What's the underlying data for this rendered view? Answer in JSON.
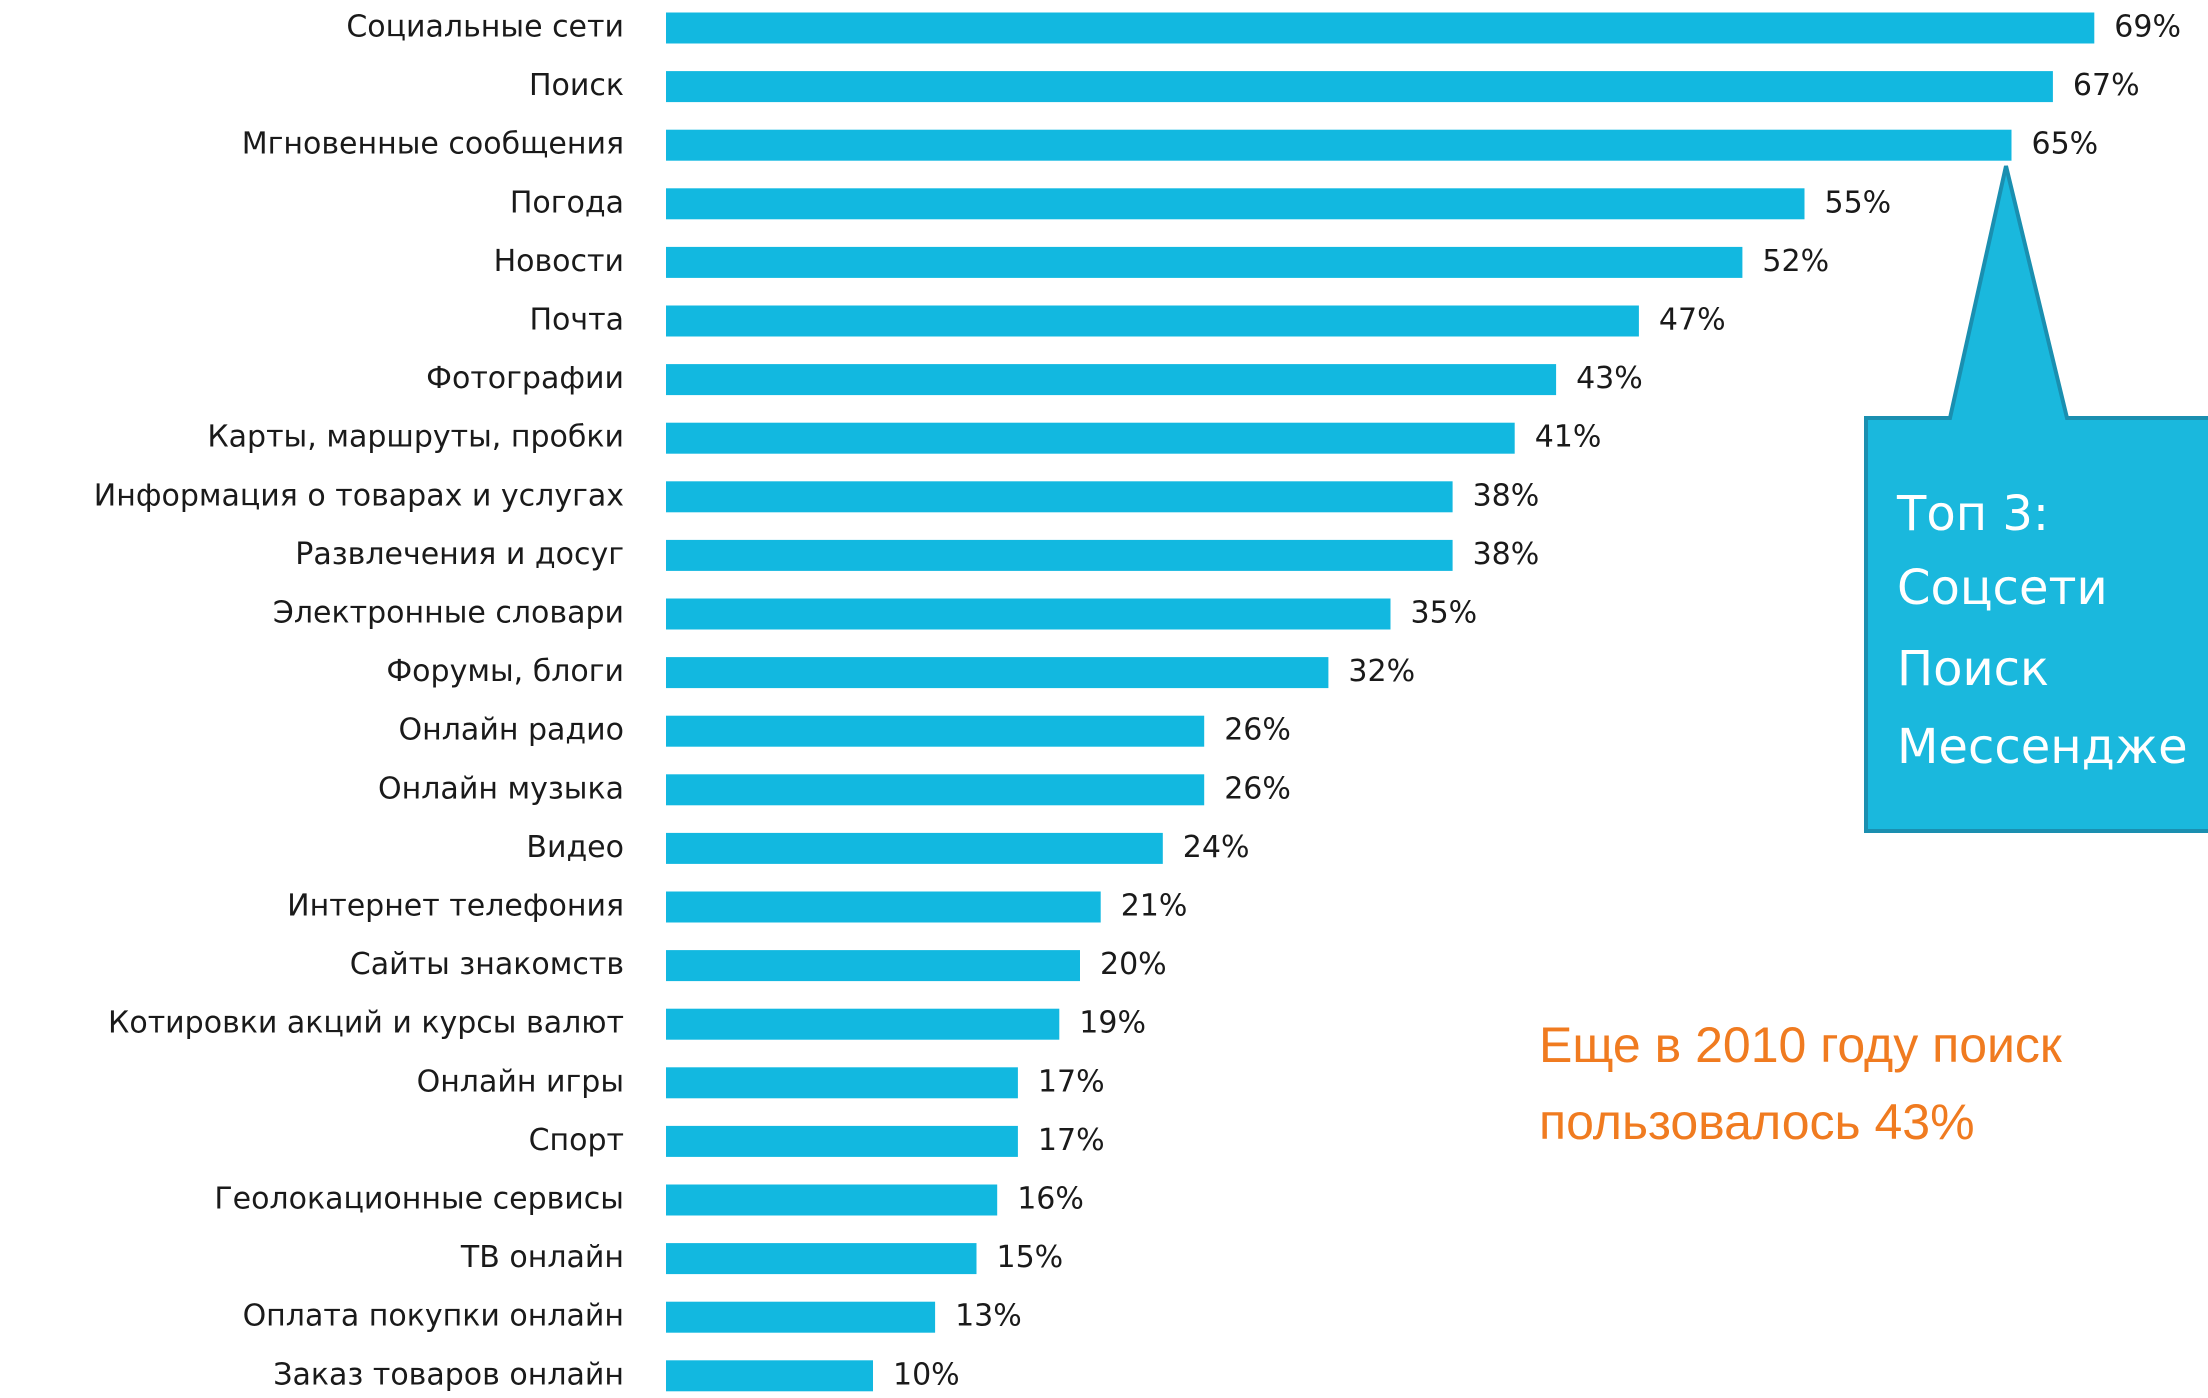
{
  "chart_data": {
    "type": "bar",
    "orientation": "horizontal",
    "color": "#12b8e0",
    "categories": [
      "Социальные сети",
      "Поиск",
      "Мгновенные сообщения",
      "Погода",
      "Новости",
      "Почта",
      "Фотографии",
      "Карты, маршруты, пробки",
      "Информация о товарах и услугах",
      "Развлечения и досуг",
      "Электронные словари",
      "Форумы, блоги",
      "Онлайн радио",
      "Онлайн музыка",
      "Видео",
      "Интернет телефония",
      "Сайты знакомств",
      "Котировки акций и курсы валют",
      "Онлайн игры",
      "Спорт",
      "Геолокационные сервисы",
      "ТВ онлайн",
      "Оплата покупки онлайн",
      "Заказ товаров онлайн"
    ],
    "values": [
      69,
      67,
      65,
      55,
      52,
      47,
      43,
      41,
      38,
      38,
      35,
      32,
      26,
      26,
      24,
      21,
      20,
      19,
      17,
      17,
      16,
      15,
      13,
      10
    ],
    "value_labels": [
      "69%",
      "67%",
      "65%",
      "55%",
      "52%",
      "47%",
      "43%",
      "41%",
      "38%",
      "38%",
      "35%",
      "32%",
      "26%",
      "26%",
      "24%",
      "21%",
      "20%",
      "19%",
      "17%",
      "17%",
      "16%",
      "15%",
      "13%",
      "10%"
    ],
    "callout": [
      "Топ 3:",
      "Соцсети",
      "Поиск",
      "Мессендже"
    ],
    "note": [
      "Еще в 2010 году поиск",
      "пользовалось 43%"
    ]
  }
}
